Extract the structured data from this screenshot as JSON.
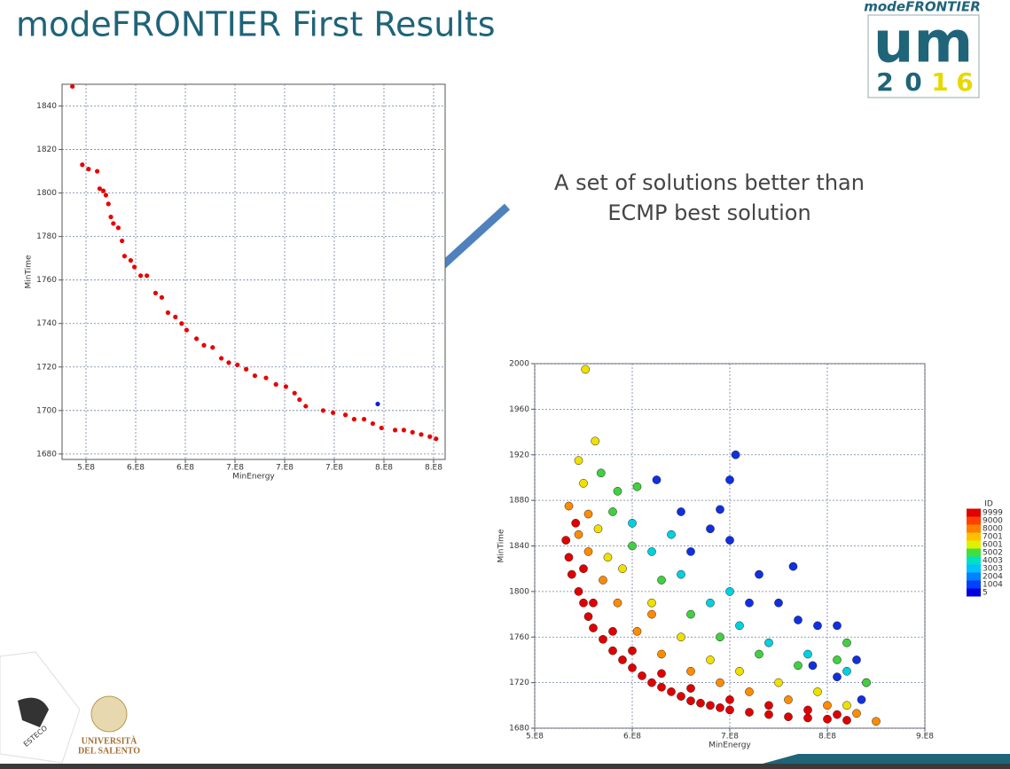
{
  "title": "modeFRONTIER First Results",
  "annotation": [
    "A set of solutions better than",
    "ECMP best solution"
  ],
  "logo": {
    "brand": "modeFRONTIER",
    "mark": "um",
    "year_digits": [
      "2",
      "0",
      "1",
      "6"
    ]
  },
  "footer_logos": {
    "university": [
      "UNIVERSITÀ",
      "DEL SALENTO"
    ],
    "company": "ESTECO"
  },
  "chart_data": [
    {
      "type": "scatter",
      "x_label": "MinEnergy",
      "y_label": "MinTime",
      "xlim": [
        520700000.0,
        829300000.0
      ],
      "ylim": [
        1677.5,
        1850
      ],
      "xticks": [
        {
          "value": 540000000.0,
          "label": "5.E8"
        },
        {
          "value": 580000000.0,
          "label": "6.E8"
        },
        {
          "value": 620000000.0,
          "label": "6.E8"
        },
        {
          "value": 660000000.0,
          "label": "7.E8"
        },
        {
          "value": 700000000.0,
          "label": "7.E8"
        },
        {
          "value": 740000000.0,
          "label": "7.E8"
        },
        {
          "value": 780000000.0,
          "label": "8.E8"
        },
        {
          "value": 820000000.0,
          "label": "8.E8"
        }
      ],
      "yticks": [
        1680,
        1700,
        1720,
        1740,
        1760,
        1780,
        1800,
        1820,
        1840
      ],
      "grid": true,
      "series": [
        {
          "color": "#e80000",
          "x": [
            529000000.0,
            537000000.0,
            542000000.0,
            549000000.0,
            551000000.0,
            554000000.0,
            556000000.0,
            558000000.0,
            560000000.0,
            562000000.0,
            566000000.0,
            569000000.0,
            571000000.0,
            576000000.0,
            579000000.0,
            584000000.0,
            589000000.0,
            596000000.0,
            601000000.0,
            606000000.0,
            612000000.0,
            617000000.0,
            621000000.0,
            629000000.0,
            635000000.0,
            642000000.0,
            649000000.0,
            655000000.0,
            662000000.0,
            669000000.0,
            676000000.0,
            685000000.0,
            693000000.0,
            701000000.0,
            708000000.0,
            712000000.0,
            717000000.0,
            731000000.0,
            739000000.0,
            749000000.0,
            756000000.0,
            764000000.0,
            771000000.0,
            778000000.0,
            789000000.0,
            796000000.0,
            803000000.0,
            810000000.0,
            817000000.0,
            822000000.0
          ],
          "y": [
            1849,
            1813,
            1811,
            1810,
            1802,
            1801,
            1799,
            1795,
            1789,
            1786,
            1784,
            1778,
            1771,
            1769,
            1766,
            1762,
            1762,
            1754,
            1752,
            1745,
            1743,
            1740,
            1737,
            1733,
            1730,
            1729,
            1724,
            1722,
            1721,
            1719,
            1716,
            1715,
            1712,
            1711,
            1708,
            1705,
            1702,
            1700,
            1699,
            1698,
            1696,
            1696,
            1694,
            1692,
            1691,
            1691,
            1690,
            1689,
            1688,
            1687
          ]
        },
        {
          "color": "#1020d0",
          "x": [
            775000000.0
          ],
          "y": [
            1703
          ]
        }
      ]
    },
    {
      "type": "scatter",
      "x_label": "MinEnergy",
      "y_label": "MinTime",
      "xlim": [
        500000000.0,
        900000000.0
      ],
      "ylim": [
        1680,
        2000
      ],
      "xticks": [
        {
          "value": 500000000.0,
          "label": "5.E8"
        },
        {
          "value": 600000000.0,
          "label": "6.E8"
        },
        {
          "value": 700000000.0,
          "label": "7.E8"
        },
        {
          "value": 800000000.0,
          "label": "8.E8"
        },
        {
          "value": 900000000.0,
          "label": "9.E8"
        }
      ],
      "yticks": [
        1680,
        1720,
        1760,
        1800,
        1840,
        1880,
        1920,
        1960,
        2000
      ],
      "grid": true,
      "colorbar": {
        "title": "ID",
        "ticks": [
          9999,
          9000,
          8000,
          7001,
          6001,
          5002,
          4003,
          3003,
          2004,
          1004,
          5
        ],
        "colors": [
          "#e00000",
          "#ff4000",
          "#ff8000",
          "#ffc000",
          "#e0f000",
          "#40e040",
          "#00e0c0",
          "#00c0ff",
          "#0080ff",
          "#0040ff",
          "#0000e0"
        ]
      },
      "series": [
        {
          "color": "#1030e0",
          "x": [
            625000000.0,
            700000000.0,
            706000000.0,
            650000000.0,
            690000000.0,
            680000000.0,
            700000000.0,
            730000000.0,
            765000000.0,
            750000000.0,
            770000000.0,
            790000000.0,
            810000000.0,
            830000000.0,
            840000000.0,
            835000000.0,
            660000000.0,
            720000000.0,
            785000000.0,
            810000000.0
          ],
          "y": [
            1898,
            1898,
            1920,
            1870,
            1872,
            1855,
            1845,
            1815,
            1822,
            1790,
            1775,
            1770,
            1770,
            1740,
            1720,
            1705,
            1835,
            1790,
            1735,
            1725
          ]
        },
        {
          "color": "#00d0e0",
          "x": [
            600000000.0,
            620000000.0,
            650000000.0,
            680000000.0,
            710000000.0,
            740000000.0,
            780000000.0,
            820000000.0,
            640000000.0,
            700000000.0
          ],
          "y": [
            1860,
            1835,
            1815,
            1790,
            1770,
            1755,
            1745,
            1730,
            1850,
            1800
          ]
        },
        {
          "color": "#40d040",
          "x": [
            568000000.0,
            585000000.0,
            605000000.0,
            580000000.0,
            600000000.0,
            630000000.0,
            660000000.0,
            690000000.0,
            730000000.0,
            770000000.0,
            810000000.0,
            820000000.0,
            840000000.0
          ],
          "y": [
            1904,
            1888,
            1892,
            1870,
            1840,
            1810,
            1780,
            1760,
            1745,
            1735,
            1740,
            1755,
            1720
          ]
        },
        {
          "color": "#f0e000",
          "x": [
            552000000.0,
            545000000.0,
            562000000.0,
            550000000.0,
            565000000.0,
            590000000.0,
            620000000.0,
            650000000.0,
            680000000.0,
            710000000.0,
            750000000.0,
            790000000.0,
            820000000.0,
            575000000.0
          ],
          "y": [
            1995,
            1915,
            1932,
            1895,
            1855,
            1820,
            1790,
            1760,
            1740,
            1730,
            1720,
            1712,
            1700,
            1830
          ]
        },
        {
          "color": "#ff8c00",
          "x": [
            535000000.0,
            545000000.0,
            555000000.0,
            570000000.0,
            585000000.0,
            605000000.0,
            630000000.0,
            660000000.0,
            690000000.0,
            720000000.0,
            760000000.0,
            800000000.0,
            830000000.0,
            850000000.0,
            555000000.0,
            620000000.0
          ],
          "y": [
            1875,
            1850,
            1835,
            1810,
            1790,
            1765,
            1745,
            1730,
            1720,
            1712,
            1705,
            1700,
            1693,
            1686,
            1868,
            1780
          ]
        },
        {
          "color": "#e00000",
          "x": [
            532000000.0,
            535000000.0,
            538000000.0,
            545000000.0,
            550000000.0,
            555000000.0,
            560000000.0,
            570000000.0,
            580000000.0,
            590000000.0,
            600000000.0,
            610000000.0,
            620000000.0,
            630000000.0,
            640000000.0,
            650000000.0,
            660000000.0,
            670000000.0,
            680000000.0,
            690000000.0,
            700000000.0,
            720000000.0,
            740000000.0,
            760000000.0,
            780000000.0,
            800000000.0,
            820000000.0,
            560000000.0,
            580000000.0,
            600000000.0,
            630000000.0,
            660000000.0,
            700000000.0,
            740000000.0,
            780000000.0,
            810000000.0,
            542000000.0,
            550000000.0
          ],
          "y": [
            1845,
            1830,
            1815,
            1800,
            1790,
            1778,
            1768,
            1758,
            1748,
            1740,
            1733,
            1726,
            1720,
            1716,
            1712,
            1708,
            1704,
            1702,
            1700,
            1698,
            1696,
            1694,
            1692,
            1690,
            1689,
            1688,
            1687,
            1790,
            1765,
            1748,
            1728,
            1715,
            1705,
            1700,
            1696,
            1692,
            1860,
            1820
          ]
        }
      ]
    }
  ]
}
